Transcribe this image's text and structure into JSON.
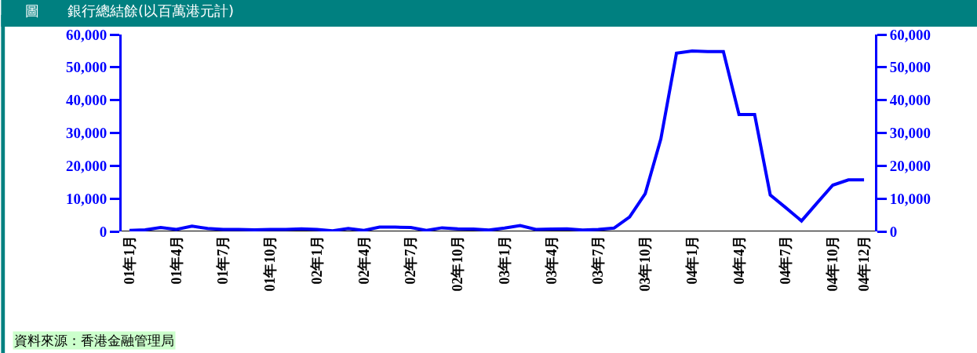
{
  "chart_data": {
    "type": "line",
    "title": "圖　　銀行總結餘(以百萬港元計)",
    "categories": [
      "01年1月",
      null,
      null,
      "01年4月",
      null,
      null,
      "01年7月",
      null,
      null,
      "01年10月",
      null,
      null,
      "02年1月",
      null,
      null,
      "02年4月",
      null,
      null,
      "02年7月",
      null,
      null,
      "02年10月",
      null,
      null,
      "03年1月",
      null,
      null,
      "03年4月",
      null,
      null,
      "03年7月",
      null,
      null,
      "03年10月",
      null,
      null,
      "04年1月",
      null,
      null,
      "04年4月",
      null,
      null,
      "04年7月",
      null,
      null,
      "04年10月",
      null,
      "04年12月"
    ],
    "series": [
      {
        "color": "#0000ff",
        "values": [
          300,
          500,
          1200,
          600,
          1600,
          900,
          600,
          600,
          500,
          600,
          600,
          800,
          600,
          200,
          900,
          300,
          1300,
          1300,
          1200,
          300,
          1100,
          800,
          700,
          400,
          1000,
          1800,
          600,
          700,
          800,
          400,
          600,
          1000,
          4400,
          11500,
          28200,
          54300,
          55000,
          54800,
          54800,
          35600,
          35600,
          11100,
          7200,
          3200,
          8700,
          14100,
          15700,
          15700
        ]
      }
    ],
    "ylim": [
      0,
      60000
    ],
    "yticks": [
      {
        "value": 0,
        "label": "0"
      },
      {
        "value": 10000,
        "label": "10,000"
      },
      {
        "value": 20000,
        "label": "20,000"
      },
      {
        "value": 30000,
        "label": "30,000"
      },
      {
        "value": 40000,
        "label": "40,000"
      },
      {
        "value": 50000,
        "label": "50,000"
      },
      {
        "value": 60000,
        "label": "60,000"
      }
    ],
    "y2lim": [
      0,
      60000
    ],
    "y2ticks": [
      {
        "value": 0,
        "label": "0"
      },
      {
        "value": 10000,
        "label": "10,000"
      },
      {
        "value": 20000,
        "label": "20,000"
      },
      {
        "value": 30000,
        "label": "30,000"
      },
      {
        "value": 40000,
        "label": "40,000"
      },
      {
        "value": 50000,
        "label": "50,000"
      },
      {
        "value": 60000,
        "label": "60,000"
      }
    ],
    "annotations": [
      "資料來源：香港金融管理局"
    ],
    "grid": false,
    "marker": "none",
    "line_style": "solid"
  }
}
